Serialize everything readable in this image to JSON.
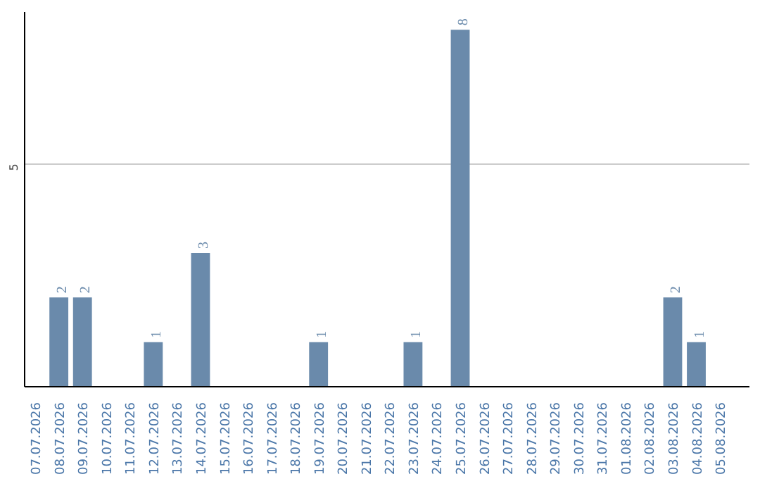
{
  "chart_data": {
    "type": "bar",
    "categories": [
      "07.07.2026",
      "08.07.2026",
      "09.07.2026",
      "10.07.2026",
      "11.07.2026",
      "12.07.2026",
      "13.07.2026",
      "14.07.2026",
      "15.07.2026",
      "16.07.2026",
      "17.07.2026",
      "18.07.2026",
      "19.07.2026",
      "20.07.2026",
      "21.07.2026",
      "22.07.2026",
      "23.07.2026",
      "24.07.2026",
      "25.07.2026",
      "26.07.2026",
      "27.07.2026",
      "28.07.2026",
      "29.07.2026",
      "30.07.2026",
      "31.07.2026",
      "01.08.2026",
      "02.08.2026",
      "03.08.2026",
      "04.08.2026",
      "05.08.2026"
    ],
    "values": [
      0,
      2,
      2,
      0,
      0,
      1,
      0,
      3,
      0,
      0,
      0,
      0,
      1,
      0,
      0,
      0,
      1,
      0,
      8,
      0,
      0,
      0,
      0,
      0,
      0,
      0,
      0,
      2,
      1,
      0
    ],
    "value_labels": [
      null,
      "2",
      "2",
      null,
      null,
      "1",
      null,
      "3",
      null,
      null,
      null,
      null,
      "1",
      null,
      null,
      null,
      "1",
      null,
      "8",
      null,
      null,
      null,
      null,
      null,
      null,
      null,
      null,
      "2",
      "1",
      null
    ],
    "color": "#6a8aab",
    "ylim": [
      0,
      8.4
    ],
    "yticks": [
      5
    ],
    "grid": "y"
  }
}
